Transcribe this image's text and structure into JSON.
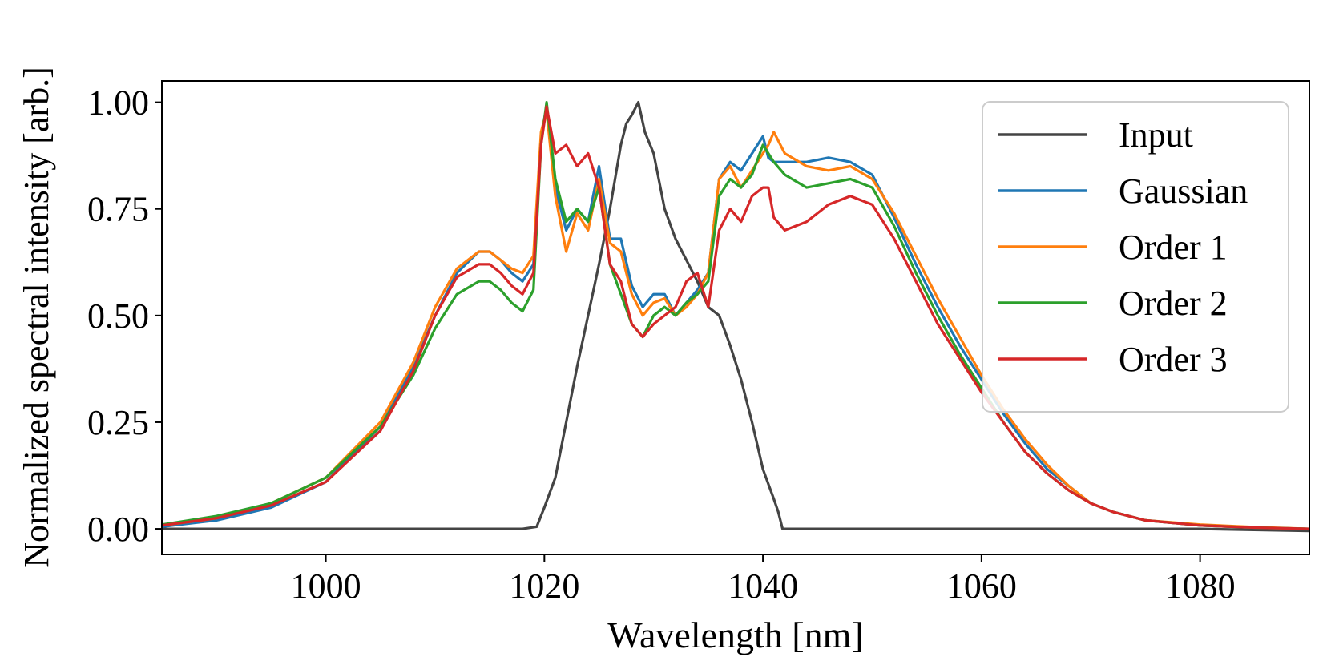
{
  "chart_data": {
    "type": "line",
    "xlabel": "Wavelength [nm]",
    "ylabel": "Normalized spectral intensity [arb.]",
    "xlim": [
      985,
      1090
    ],
    "ylim": [
      -0.06,
      1.05
    ],
    "xticks": [
      1000,
      1020,
      1040,
      1060,
      1080
    ],
    "xtick_labels": [
      "1000",
      "1020",
      "1040",
      "1060",
      "1080"
    ],
    "yticks": [
      0,
      0.25,
      0.5,
      0.75,
      1.0
    ],
    "ytick_labels": [
      "0.00",
      "0.25",
      "0.50",
      "0.75",
      "1.00"
    ],
    "grid": false,
    "legend_position": "top-right",
    "series": [
      {
        "name": "Input",
        "color": "#444444",
        "x": [
          985,
          1000,
          1018,
          1019.3,
          1020,
          1021,
          1022,
          1023,
          1024,
          1025,
          1026,
          1027,
          1027.5,
          1028,
          1028.6,
          1029.2,
          1030,
          1031,
          1032,
          1033,
          1034,
          1035,
          1036,
          1037,
          1038,
          1039,
          1040,
          1041,
          1041.4,
          1041.8,
          1050,
          1060,
          1070,
          1080,
          1090
        ],
        "y": [
          0.0,
          0.0,
          0.0,
          0.005,
          0.05,
          0.12,
          0.25,
          0.38,
          0.5,
          0.62,
          0.75,
          0.9,
          0.95,
          0.97,
          1.0,
          0.93,
          0.88,
          0.75,
          0.68,
          0.63,
          0.58,
          0.52,
          0.5,
          0.43,
          0.35,
          0.25,
          0.14,
          0.07,
          0.04,
          0.0,
          0.0,
          0.0,
          0.0,
          0.0,
          -0.005
        ]
      },
      {
        "name": "Gaussian",
        "color": "#1f77b4",
        "x": [
          985,
          990,
          995,
          1000,
          1005,
          1008,
          1010,
          1012,
          1014,
          1015,
          1016,
          1017,
          1018,
          1019,
          1019.7,
          1020.2,
          1021,
          1022,
          1023,
          1024,
          1025,
          1026,
          1027,
          1028,
          1029,
          1030,
          1031,
          1032,
          1033,
          1034,
          1035,
          1036,
          1037,
          1038,
          1039,
          1040,
          1040.5,
          1041,
          1042,
          1044,
          1046,
          1048,
          1050,
          1052,
          1054,
          1056,
          1058,
          1060,
          1062,
          1064,
          1066,
          1068,
          1070,
          1072,
          1075,
          1080,
          1085,
          1090
        ],
        "y": [
          0.005,
          0.02,
          0.05,
          0.11,
          0.24,
          0.38,
          0.5,
          0.6,
          0.65,
          0.65,
          0.63,
          0.6,
          0.58,
          0.62,
          0.92,
          0.99,
          0.8,
          0.7,
          0.75,
          0.72,
          0.85,
          0.68,
          0.68,
          0.57,
          0.52,
          0.55,
          0.55,
          0.5,
          0.53,
          0.56,
          0.6,
          0.82,
          0.86,
          0.84,
          0.88,
          0.92,
          0.87,
          0.86,
          0.86,
          0.86,
          0.87,
          0.86,
          0.83,
          0.73,
          0.62,
          0.52,
          0.43,
          0.35,
          0.27,
          0.2,
          0.14,
          0.1,
          0.06,
          0.04,
          0.02,
          0.008,
          0.003,
          0.0
        ]
      },
      {
        "name": "Order 1",
        "color": "#ff7f0e",
        "x": [
          985,
          990,
          995,
          1000,
          1005,
          1008,
          1010,
          1012,
          1014,
          1015,
          1016,
          1017,
          1018,
          1019,
          1019.7,
          1020.2,
          1021,
          1022,
          1023,
          1024,
          1025,
          1026,
          1027,
          1028,
          1029,
          1030,
          1031,
          1032,
          1033,
          1034,
          1035,
          1036,
          1037,
          1038,
          1039,
          1040,
          1040.5,
          1041,
          1042,
          1044,
          1046,
          1048,
          1050,
          1052,
          1054,
          1056,
          1058,
          1060,
          1062,
          1064,
          1066,
          1068,
          1070,
          1072,
          1075,
          1080,
          1085,
          1090
        ],
        "y": [
          0.008,
          0.025,
          0.06,
          0.12,
          0.25,
          0.39,
          0.52,
          0.61,
          0.65,
          0.65,
          0.63,
          0.61,
          0.6,
          0.64,
          0.93,
          0.98,
          0.78,
          0.65,
          0.74,
          0.7,
          0.82,
          0.67,
          0.65,
          0.55,
          0.5,
          0.53,
          0.54,
          0.5,
          0.52,
          0.55,
          0.6,
          0.82,
          0.85,
          0.8,
          0.84,
          0.88,
          0.9,
          0.93,
          0.88,
          0.85,
          0.84,
          0.85,
          0.82,
          0.74,
          0.64,
          0.54,
          0.45,
          0.36,
          0.28,
          0.21,
          0.15,
          0.1,
          0.06,
          0.04,
          0.02,
          0.01,
          0.004,
          0.0
        ]
      },
      {
        "name": "Order 2",
        "color": "#2ca02c",
        "x": [
          985,
          990,
          995,
          1000,
          1005,
          1008,
          1010,
          1012,
          1014,
          1015,
          1016,
          1017,
          1018,
          1019,
          1019.7,
          1020.2,
          1021,
          1022,
          1023,
          1024,
          1025,
          1026,
          1027,
          1028,
          1029,
          1030,
          1031,
          1032,
          1033,
          1034,
          1035,
          1036,
          1037,
          1038,
          1039,
          1040,
          1040.5,
          1041,
          1042,
          1044,
          1046,
          1048,
          1050,
          1052,
          1054,
          1056,
          1058,
          1060,
          1062,
          1064,
          1066,
          1068,
          1070,
          1072,
          1075,
          1080,
          1085,
          1090
        ],
        "y": [
          0.01,
          0.03,
          0.06,
          0.12,
          0.24,
          0.36,
          0.47,
          0.55,
          0.58,
          0.58,
          0.56,
          0.53,
          0.51,
          0.56,
          0.9,
          1.0,
          0.82,
          0.72,
          0.75,
          0.72,
          0.8,
          0.62,
          0.55,
          0.48,
          0.45,
          0.5,
          0.52,
          0.5,
          0.53,
          0.55,
          0.58,
          0.78,
          0.82,
          0.8,
          0.83,
          0.9,
          0.88,
          0.86,
          0.83,
          0.8,
          0.81,
          0.82,
          0.8,
          0.71,
          0.6,
          0.5,
          0.41,
          0.33,
          0.25,
          0.18,
          0.13,
          0.09,
          0.06,
          0.04,
          0.02,
          0.008,
          0.003,
          0.0
        ]
      },
      {
        "name": "Order 3",
        "color": "#d62728",
        "x": [
          985,
          990,
          995,
          1000,
          1005,
          1008,
          1010,
          1012,
          1014,
          1015,
          1016,
          1017,
          1018,
          1019,
          1019.7,
          1020.2,
          1021,
          1022,
          1023,
          1024,
          1025,
          1026,
          1027,
          1028,
          1029,
          1030,
          1031,
          1032,
          1033,
          1034,
          1035,
          1036,
          1037,
          1038,
          1039,
          1040,
          1040.5,
          1041,
          1042,
          1044,
          1046,
          1048,
          1050,
          1052,
          1054,
          1056,
          1058,
          1060,
          1062,
          1064,
          1066,
          1068,
          1070,
          1072,
          1075,
          1080,
          1085,
          1090
        ],
        "y": [
          0.008,
          0.025,
          0.055,
          0.11,
          0.23,
          0.37,
          0.5,
          0.59,
          0.62,
          0.62,
          0.6,
          0.57,
          0.55,
          0.6,
          0.9,
          0.99,
          0.88,
          0.9,
          0.85,
          0.88,
          0.8,
          0.62,
          0.58,
          0.48,
          0.45,
          0.48,
          0.5,
          0.52,
          0.58,
          0.6,
          0.52,
          0.7,
          0.75,
          0.72,
          0.78,
          0.8,
          0.8,
          0.73,
          0.7,
          0.72,
          0.76,
          0.78,
          0.76,
          0.68,
          0.58,
          0.48,
          0.4,
          0.32,
          0.25,
          0.18,
          0.13,
          0.09,
          0.06,
          0.04,
          0.02,
          0.008,
          0.003,
          0.0
        ]
      }
    ]
  }
}
